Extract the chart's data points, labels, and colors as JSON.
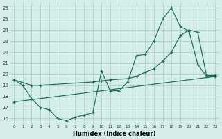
{
  "xlabel": "Humidex (Indice chaleur)",
  "bg_color": "#d4ede8",
  "grid_color": "#aacbc5",
  "line_color": "#1a6b5a",
  "xlim": [
    -0.5,
    23.5
  ],
  "ylim": [
    15.5,
    26.5
  ],
  "yticks": [
    16,
    17,
    18,
    19,
    20,
    21,
    22,
    23,
    24,
    25,
    26
  ],
  "xticks": [
    0,
    1,
    2,
    3,
    4,
    5,
    6,
    7,
    8,
    9,
    10,
    11,
    12,
    13,
    14,
    15,
    16,
    17,
    18,
    19,
    20,
    21,
    22,
    23
  ],
  "series1_x": [
    0,
    1,
    2,
    3,
    4,
    5,
    6,
    7,
    8,
    9,
    10,
    11,
    12,
    13,
    14,
    15,
    16,
    17,
    18,
    19,
    20,
    21,
    22,
    23
  ],
  "series1_y": [
    19.5,
    19.0,
    17.8,
    17.0,
    16.8,
    16.0,
    15.8,
    16.1,
    16.3,
    16.5,
    20.3,
    18.5,
    18.5,
    19.3,
    21.7,
    21.8,
    23.0,
    25.0,
    26.0,
    24.3,
    23.9,
    20.9,
    19.8,
    19.8
  ],
  "series2_x": [
    0,
    2,
    3,
    9,
    10,
    11,
    13,
    14,
    15,
    16,
    17,
    18,
    19,
    20,
    21,
    22,
    23
  ],
  "series2_y": [
    19.5,
    19.0,
    19.0,
    19.3,
    19.4,
    19.5,
    19.6,
    19.8,
    20.2,
    20.5,
    21.2,
    22.0,
    23.5,
    24.0,
    23.8,
    19.9,
    19.9
  ],
  "series3_x": [
    0,
    23
  ],
  "series3_y": [
    17.5,
    19.8
  ]
}
